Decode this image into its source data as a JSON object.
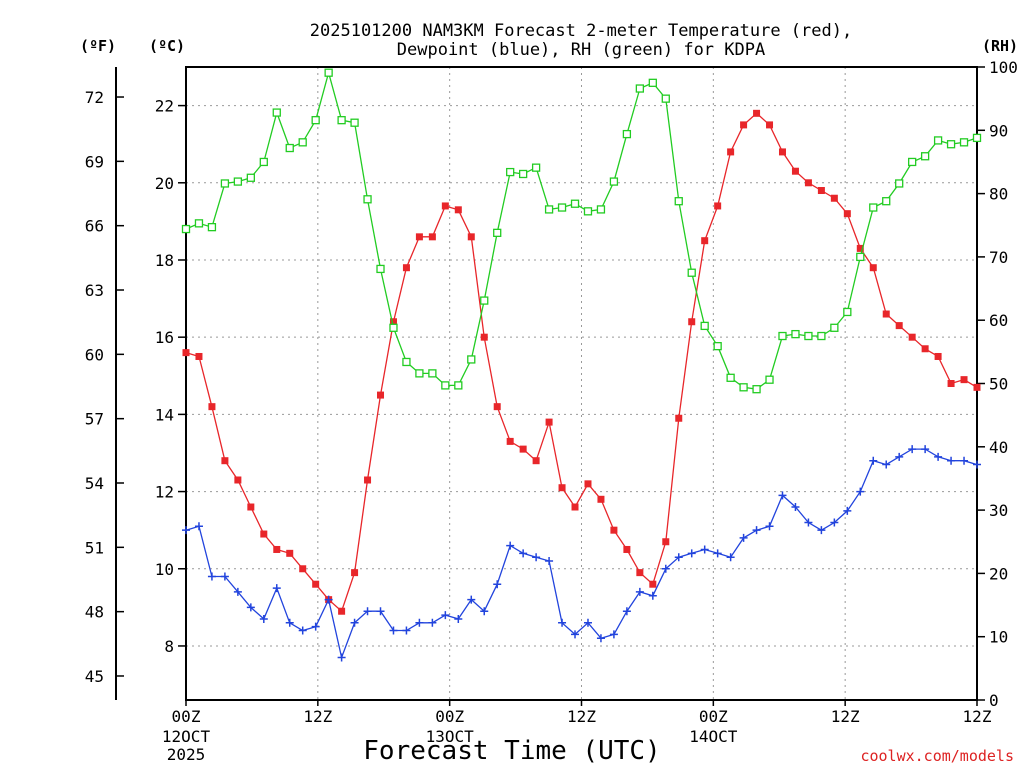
{
  "chart_data": {
    "type": "line",
    "title_line1": "2025101200 NAM3KM Forecast 2-meter Temperature (red),",
    "title_line2": "Dewpoint (blue), RH (green) for KDPA",
    "xlabel": "Forecast Time (UTC)",
    "left_unit_f": "(ºF)",
    "left_unit_c": "(ºC)",
    "right_unit": "(RH)",
    "credit": "coolwx.com/models",
    "x_range_hours": [
      0,
      72
    ],
    "ylim_c": [
      6.6,
      23
    ],
    "ylim_rh": [
      0,
      100
    ],
    "x_ticks": [
      {
        "hour": 0,
        "label": "00Z",
        "sub1": "12OCT",
        "sub2": "2025"
      },
      {
        "hour": 12,
        "label": "12Z",
        "sub1": "",
        "sub2": ""
      },
      {
        "hour": 24,
        "label": "00Z",
        "sub1": "13OCT",
        "sub2": ""
      },
      {
        "hour": 36,
        "label": "12Z",
        "sub1": "",
        "sub2": ""
      },
      {
        "hour": 48,
        "label": "00Z",
        "sub1": "14OCT",
        "sub2": ""
      },
      {
        "hour": 60,
        "label": "12Z",
        "sub1": "",
        "sub2": ""
      }
    ],
    "c_ticks": [
      8,
      10,
      12,
      14,
      16,
      18,
      20,
      22
    ],
    "f_ticks": [
      45,
      48,
      51,
      54,
      57,
      60,
      63,
      66,
      69,
      72
    ],
    "rh_ticks": [
      0,
      10,
      20,
      30,
      40,
      50,
      60,
      70,
      80,
      90,
      100
    ],
    "series": [
      {
        "name": "Temperature",
        "color": "#e8262a",
        "marker": "filled-square",
        "values": [
          15.6,
          15.5,
          14.2,
          12.8,
          12.3,
          11.6,
          10.9,
          10.5,
          10.4,
          10.0,
          9.6,
          9.2,
          8.9,
          9.9,
          12.3,
          14.5,
          16.4,
          17.8,
          18.6,
          18.6,
          19.4,
          19.3,
          18.6,
          16.0,
          14.2,
          13.3,
          13.1,
          12.8,
          13.8,
          12.1,
          11.6,
          12.2,
          11.8,
          11.0,
          10.5,
          9.9,
          9.6,
          10.7,
          13.9,
          16.4,
          18.5,
          19.4,
          20.8,
          21.5,
          21.8,
          21.5,
          20.8,
          20.3,
          20.0,
          19.8,
          19.6,
          19.2,
          18.3,
          17.8,
          16.6,
          16.3,
          16.0,
          15.7,
          15.5,
          14.8,
          14.9,
          14.7
        ]
      },
      {
        "name": "Dewpoint",
        "color": "#2244dd",
        "marker": "plus",
        "values": [
          11.0,
          11.1,
          9.8,
          9.8,
          9.4,
          9.0,
          8.7,
          9.5,
          8.6,
          8.4,
          8.5,
          9.2,
          7.7,
          8.6,
          8.9,
          8.9,
          8.4,
          8.4,
          8.6,
          8.6,
          8.8,
          8.7,
          9.2,
          8.9,
          9.6,
          10.6,
          10.4,
          10.3,
          10.2,
          8.6,
          8.3,
          8.6,
          8.2,
          8.3,
          8.9,
          9.4,
          9.3,
          10.0,
          10.3,
          10.4,
          10.5,
          10.4,
          10.3,
          10.8,
          11.0,
          11.1,
          11.9,
          11.6,
          11.2,
          11.0,
          11.2,
          11.5,
          12.0,
          12.8,
          12.7,
          12.9,
          13.1,
          13.1,
          12.9,
          12.8,
          12.8,
          12.7
        ]
      },
      {
        "name": "RH",
        "color": "#22cc22",
        "marker": "open-square",
        "values": [
          74.4,
          75.3,
          74.7,
          81.6,
          81.9,
          82.5,
          85.0,
          92.8,
          87.2,
          88.1,
          91.6,
          99.1,
          91.6,
          91.2,
          79.1,
          68.1,
          58.8,
          53.4,
          51.6,
          51.6,
          49.7,
          49.7,
          53.8,
          63.1,
          73.8,
          83.4,
          83.1,
          84.1,
          77.5,
          77.8,
          78.4,
          77.2,
          77.5,
          81.9,
          89.4,
          96.6,
          97.5,
          95.0,
          78.8,
          67.5,
          59.1,
          55.9,
          50.9,
          49.4,
          49.1,
          50.6,
          57.5,
          57.8,
          57.5,
          57.5,
          58.8,
          61.3,
          70.0,
          77.8,
          78.8,
          81.6,
          85.0,
          85.9,
          88.4,
          87.8,
          88.1,
          88.8
        ]
      }
    ]
  }
}
